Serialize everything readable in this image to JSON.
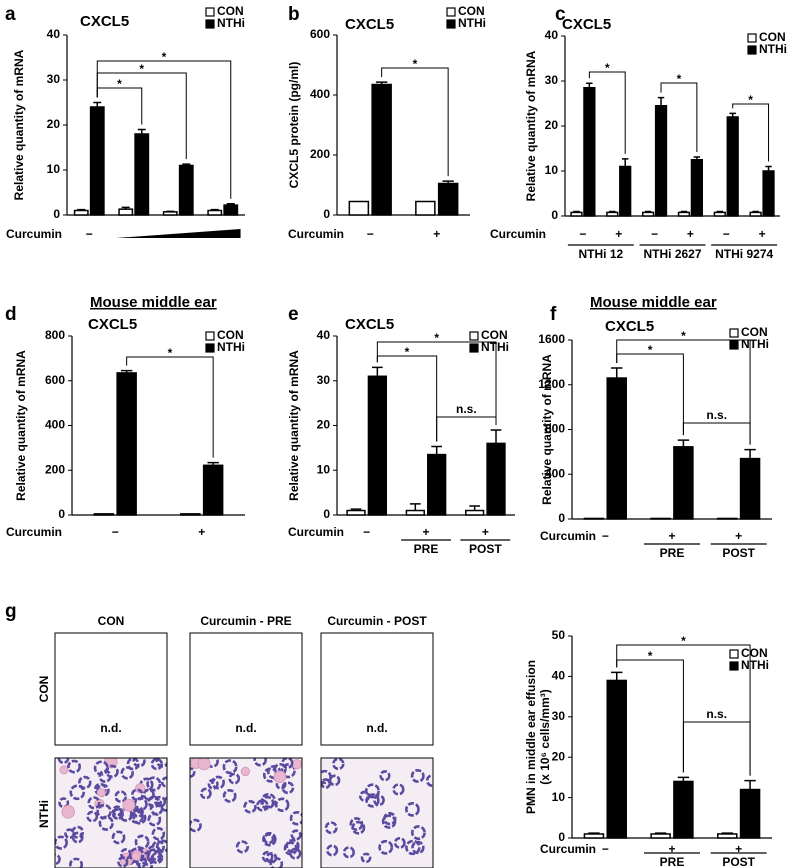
{
  "chart_data": [
    {
      "type": "bar",
      "panel": "a",
      "title": "CXCL5",
      "ylabel": "Relative quantity of mRNA",
      "xlabel": "Curcumin",
      "categories": [
        "−",
        null,
        null,
        null
      ],
      "series": [
        {
          "name": "CON",
          "color": "#ffffff",
          "values": [
            1,
            1.3,
            0.7,
            1
          ],
          "errors": [
            0.2,
            0.4,
            0.1,
            0.2
          ]
        },
        {
          "name": "NTHi",
          "color": "#000000",
          "values": [
            24,
            18,
            11,
            2.2
          ],
          "errors": [
            1,
            1,
            0.3,
            0.3
          ]
        }
      ],
      "ylim": [
        0,
        40
      ],
      "yticks": [
        0,
        10,
        20,
        30,
        40
      ],
      "grid": false,
      "legend": "upper right",
      "annotations": [
        "*",
        "*",
        "*"
      ]
    },
    {
      "type": "bar",
      "panel": "b",
      "title": "CXCL5",
      "ylabel": "CXCL5 protein (pg/ml)",
      "xlabel": "Curcumin",
      "categories": [
        "−",
        "+"
      ],
      "series": [
        {
          "name": "CON",
          "color": "#ffffff",
          "values": [
            45,
            45
          ],
          "errors": [
            0,
            0
          ]
        },
        {
          "name": "NTHi",
          "color": "#000000",
          "values": [
            435,
            105
          ],
          "errors": [
            8,
            8
          ]
        }
      ],
      "ylim": [
        0,
        600
      ],
      "yticks": [
        0,
        200,
        400,
        600
      ],
      "grid": false,
      "legend": "upper right",
      "annotations": [
        "*"
      ]
    },
    {
      "type": "bar",
      "panel": "c",
      "title": "CXCL5",
      "ylabel": "Relative quantity of mRNA",
      "xlabel": "Curcumin",
      "categories": [
        "−",
        "+",
        "−",
        "+",
        "−",
        "+"
      ],
      "group_labels": [
        "NTHi 12",
        "NTHi 2627",
        "NTHi 9274"
      ],
      "series": [
        {
          "name": "CON",
          "color": "#ffffff",
          "values": [
            0.8,
            0.8,
            0.8,
            0.8,
            0.8,
            0.8
          ],
          "errors": [
            0.2,
            0.2,
            0.2,
            0.2,
            0.2,
            0.2
          ]
        },
        {
          "name": "NTHi",
          "color": "#000000",
          "values": [
            28.5,
            11,
            24.5,
            12.5,
            22,
            10
          ],
          "errors": [
            1,
            1.7,
            1.8,
            0.6,
            0.8,
            1
          ]
        }
      ],
      "ylim": [
        0,
        40
      ],
      "yticks": [
        0,
        10,
        20,
        30,
        40
      ],
      "grid": false,
      "legend": "upper right",
      "annotations": [
        "*",
        "*",
        "*"
      ]
    },
    {
      "type": "bar",
      "header": "Mouse middle ear",
      "panel": "d",
      "title": "CXCL5",
      "ylabel": "Relative quantity of mRNA",
      "xlabel": "Curcumin",
      "categories": [
        "−",
        "+"
      ],
      "series": [
        {
          "name": "CON",
          "color": "#ffffff",
          "values": [
            5,
            5
          ],
          "errors": [
            0,
            0
          ]
        },
        {
          "name": "NTHi",
          "color": "#000000",
          "values": [
            635,
            222
          ],
          "errors": [
            10,
            12
          ]
        }
      ],
      "ylim": [
        0,
        800
      ],
      "yticks": [
        0,
        200,
        400,
        600,
        800
      ],
      "grid": false,
      "legend": "upper right",
      "annotations": [
        "*"
      ]
    },
    {
      "type": "bar",
      "panel": "e",
      "title": "CXCL5",
      "ylabel": "Relative quantity of mRNA",
      "xlabel": "Curcumin",
      "categories": [
        "−",
        "+",
        "+"
      ],
      "group_labels": [
        null,
        "PRE",
        "POST"
      ],
      "series": [
        {
          "name": "CON",
          "color": "#ffffff",
          "values": [
            1,
            1,
            1
          ],
          "errors": [
            0.3,
            1.5,
            1
          ]
        },
        {
          "name": "NTHi",
          "color": "#000000",
          "values": [
            31,
            13.5,
            16
          ],
          "errors": [
            2,
            1.8,
            3
          ]
        }
      ],
      "ylim": [
        0,
        40
      ],
      "yticks": [
        0,
        10,
        20,
        30,
        40
      ],
      "grid": false,
      "legend": "upper right",
      "annotations": [
        "*",
        "*",
        "n.s."
      ]
    },
    {
      "type": "bar",
      "header": "Mouse middle ear",
      "panel": "f",
      "title": "CXCL5",
      "ylabel": "Relative quantity of mRNA",
      "xlabel": "Curcumin",
      "categories": [
        "−",
        "+",
        "+"
      ],
      "group_labels": [
        null,
        "PRE",
        "POST"
      ],
      "series": [
        {
          "name": "CON",
          "color": "#ffffff",
          "values": [
            5,
            5,
            5
          ],
          "errors": [
            0,
            0,
            0
          ]
        },
        {
          "name": "NTHi",
          "color": "#000000",
          "values": [
            1260,
            645,
            540
          ],
          "errors": [
            90,
            60,
            80
          ]
        }
      ],
      "ylim": [
        0,
        1600
      ],
      "yticks": [
        0,
        400,
        800,
        1200,
        1600
      ],
      "grid": false,
      "legend": "upper right",
      "annotations": [
        "*",
        "*",
        "n.s."
      ]
    },
    {
      "type": "bar",
      "ylabel": [
        "PMN in middle ear effusion",
        "(x 10⁶ cells/mm³)"
      ],
      "xlabel": "Curcumin",
      "categories": [
        "−",
        "+",
        "+"
      ],
      "group_labels": [
        null,
        "PRE",
        "POST"
      ],
      "series": [
        {
          "name": "CON",
          "color": "#ffffff",
          "values": [
            1,
            1,
            1
          ],
          "errors": [
            0.2,
            0.2,
            0.2
          ]
        },
        {
          "name": "NTHi",
          "color": "#000000",
          "values": [
            39,
            14,
            12
          ],
          "errors": [
            2,
            1,
            2.2
          ]
        }
      ],
      "ylim": [
        0,
        50
      ],
      "yticks": [
        0,
        10,
        20,
        30,
        40,
        50
      ],
      "grid": false,
      "legend": "upper right",
      "annotations": [
        "*",
        "*",
        "n.s."
      ]
    }
  ],
  "micrographs": {
    "panel": "g",
    "columns": [
      "CON",
      "Curcumin - PRE",
      "Curcumin - POST"
    ],
    "rows": [
      "CON",
      "NTHi"
    ],
    "notes": [
      "n.d.",
      "n.d.",
      "n.d."
    ]
  }
}
